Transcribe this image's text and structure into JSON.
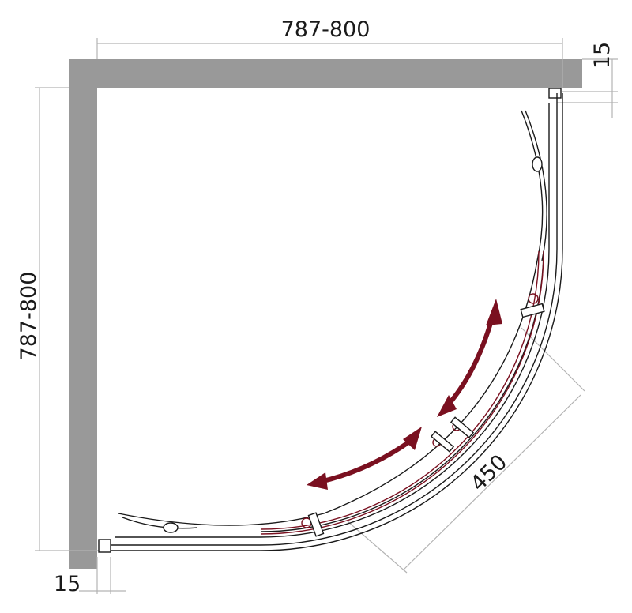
{
  "dimensions": {
    "top_width": "787-800",
    "left_height": "787-800",
    "right_wall_offset": "15",
    "bottom_wall_offset": "15",
    "door_width": "450"
  },
  "colors": {
    "wall": "#999999",
    "outline": "#1a1a1a",
    "dimension_line": "#b3b3b3",
    "door_accent": "#7a1020"
  }
}
